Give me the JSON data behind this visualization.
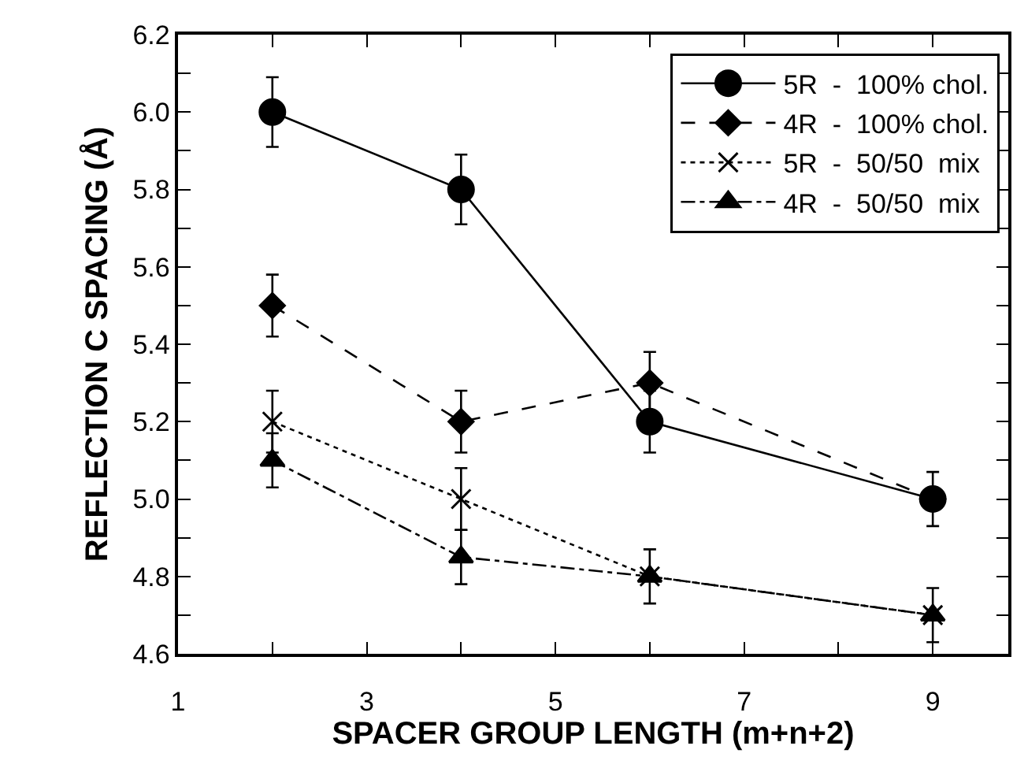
{
  "chart_data": {
    "type": "line",
    "xlabel": "SPACER GROUP LENGTH (m+n+2)",
    "ylabel": "REFLECTION C SPACING (Å)",
    "xlim": [
      1,
      9.8
    ],
    "xticks": [
      1,
      {
        "value": 2,
        "label": null
      },
      3,
      {
        "value": 4,
        "label": null
      },
      5,
      {
        "value": 6,
        "label": null
      },
      7,
      {
        "value": 8,
        "label": null
      },
      9
    ],
    "ylim": [
      4.6,
      6.2
    ],
    "yticks": [
      4.6,
      {
        "value": 4.7,
        "label": null
      },
      4.8,
      {
        "value": 4.9,
        "label": null
      },
      "5.0",
      {
        "value": 5.1,
        "label": null
      },
      5.2,
      {
        "value": 5.3,
        "label": null
      },
      5.4,
      {
        "value": 5.5,
        "label": null
      },
      5.6,
      {
        "value": 5.7,
        "label": null
      },
      5.8,
      {
        "value": 5.9,
        "label": null
      },
      "6.0",
      {
        "value": 6.1,
        "label": null
      },
      6.2
    ],
    "grid": false,
    "legend": "top right",
    "x": [
      2,
      4,
      6,
      9
    ],
    "series": [
      {
        "name": "5R  -  100% chol.",
        "color": "#000000",
        "marker": "circle",
        "line_style": "solid",
        "values": [
          6.0,
          5.8,
          5.2,
          5.0
        ],
        "errors": [
          0.09,
          0.09,
          0.08,
          0.07
        ]
      },
      {
        "name": "4R  -  100% chol.",
        "color": "#000000",
        "marker": "diamond",
        "line_style": "dashed",
        "values": [
          5.5,
          5.2,
          5.3,
          5.0
        ],
        "errors": [
          0.08,
          0.08,
          0.08,
          null
        ]
      },
      {
        "name": "5R  -  50/50  mix",
        "color": "#000000",
        "marker": "cross",
        "line_style": "dotted",
        "values": [
          5.2,
          5.0,
          4.8,
          4.7
        ],
        "errors": [
          0.08,
          0.08,
          0.07,
          0.07
        ]
      },
      {
        "name": "4R  -  50/50  mix",
        "color": "#000000",
        "marker": "triangle",
        "line_style": "dashdot",
        "values": [
          5.1,
          4.85,
          4.8,
          4.7
        ],
        "errors": [
          0.07,
          0.07,
          null,
          null
        ]
      }
    ]
  }
}
